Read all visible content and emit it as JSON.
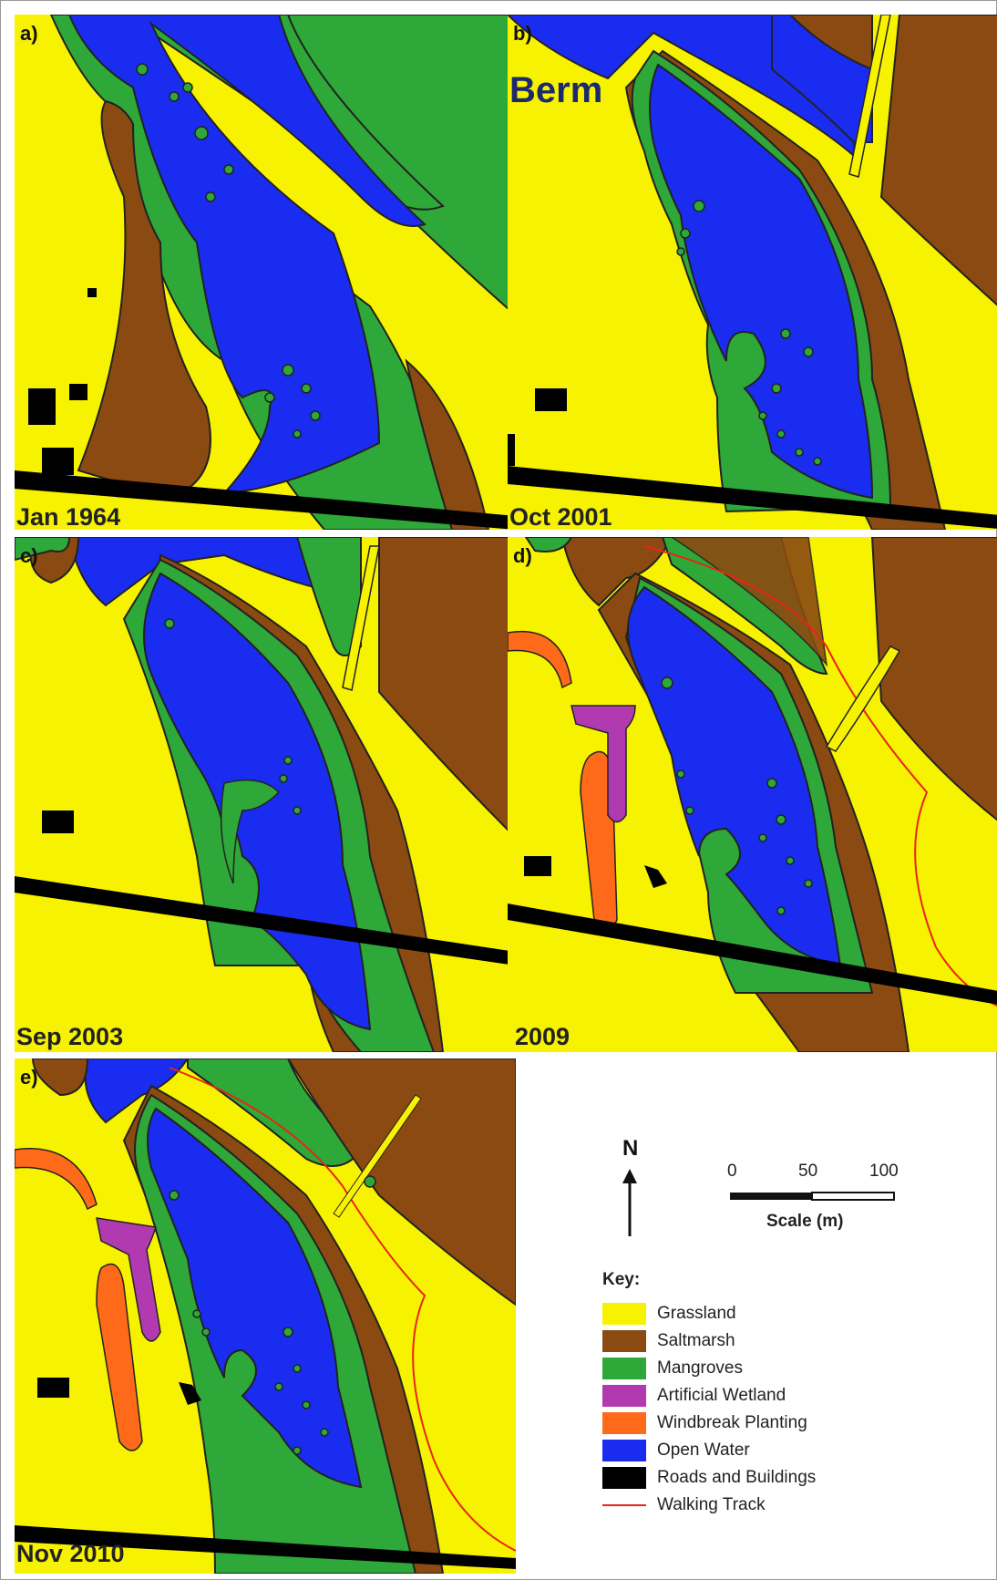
{
  "figure": {
    "berm_label": "Berm",
    "panels": [
      {
        "letter": "a)",
        "date": "Jan 1964"
      },
      {
        "letter": "b)",
        "date": "Oct 2001"
      },
      {
        "letter": "c)",
        "date": "Sep 2003"
      },
      {
        "letter": "d)",
        "date": "2009"
      },
      {
        "letter": "e)",
        "date": "Nov 2010"
      }
    ]
  },
  "colors": {
    "grassland": "#f7f200",
    "saltmarsh": "#8a4a12",
    "mangroves": "#2ea838",
    "artificial_wetland": "#b23ab0",
    "windbreak_planting": "#ff6a1a",
    "open_water": "#1a2cf0",
    "roads_and_buildings": "#000000",
    "walking_track": "#e8251a"
  },
  "legend": {
    "north_label": "N",
    "scale": {
      "ticks": [
        "0",
        "50",
        "100"
      ],
      "title": "Scale (m)"
    },
    "key_title": "Key:",
    "items": [
      {
        "label": "Grassland",
        "color": "#f7f200",
        "kind": "fill"
      },
      {
        "label": "Saltmarsh",
        "color": "#8a4a12",
        "kind": "fill"
      },
      {
        "label": "Mangroves",
        "color": "#2ea838",
        "kind": "fill"
      },
      {
        "label": "Artificial Wetland",
        "color": "#b23ab0",
        "kind": "fill"
      },
      {
        "label": "Windbreak Planting",
        "color": "#ff6a1a",
        "kind": "fill"
      },
      {
        "label": "Open Water",
        "color": "#1a2cf0",
        "kind": "fill"
      },
      {
        "label": "Roads and Buildings",
        "color": "#000000",
        "kind": "fill"
      },
      {
        "label": "Walking Track",
        "color": "#e8251a",
        "kind": "line"
      }
    ]
  }
}
